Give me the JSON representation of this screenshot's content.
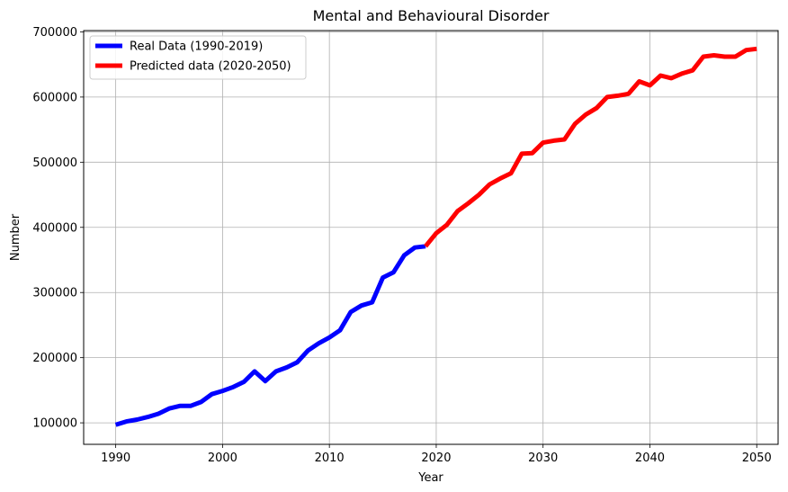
{
  "chart_data": {
    "type": "line",
    "title": "Mental and Behavioural Disorder",
    "xlabel": "Year",
    "ylabel": "Number",
    "xlim": [
      1987,
      2052
    ],
    "ylim": [
      67000,
      702000
    ],
    "xticks": [
      1990,
      2000,
      2010,
      2020,
      2030,
      2040,
      2050
    ],
    "yticks": [
      100000,
      200000,
      300000,
      400000,
      500000,
      600000,
      700000
    ],
    "grid": true,
    "legend_position": "top-left",
    "series": [
      {
        "name": "Real Data (1990-2019)",
        "color": "#0000ff",
        "x": [
          1990,
          1991,
          1992,
          1993,
          1994,
          1995,
          1996,
          1997,
          1998,
          1999,
          2000,
          2001,
          2002,
          2003,
          2004,
          2005,
          2006,
          2007,
          2008,
          2009,
          2010,
          2011,
          2012,
          2013,
          2014,
          2015,
          2016,
          2017,
          2018,
          2019
        ],
        "y": [
          97000,
          102000,
          105000,
          109000,
          114000,
          122000,
          126000,
          126000,
          132000,
          144000,
          149000,
          155000,
          163000,
          179000,
          164000,
          179000,
          185000,
          193000,
          211000,
          222000,
          231000,
          242000,
          270000,
          280000,
          285000,
          323000,
          331000,
          357000,
          369000,
          371000
        ]
      },
      {
        "name": "Predicted data (2020-2050)",
        "color": "#ff0000",
        "x": [
          2019,
          2020,
          2021,
          2022,
          2023,
          2024,
          2025,
          2026,
          2027,
          2028,
          2029,
          2030,
          2031,
          2032,
          2033,
          2034,
          2035,
          2036,
          2037,
          2038,
          2039,
          2040,
          2041,
          2042,
          2043,
          2044,
          2045,
          2046,
          2047,
          2048,
          2049,
          2050
        ],
        "y": [
          371000,
          391000,
          404000,
          425000,
          437000,
          450000,
          466000,
          475000,
          483000,
          513000,
          514000,
          530000,
          533000,
          535000,
          559000,
          573000,
          583000,
          600000,
          602000,
          605000,
          624000,
          618000,
          633000,
          629000,
          636000,
          641000,
          662000,
          664000,
          662000,
          662000,
          672000,
          674000
        ]
      }
    ]
  }
}
